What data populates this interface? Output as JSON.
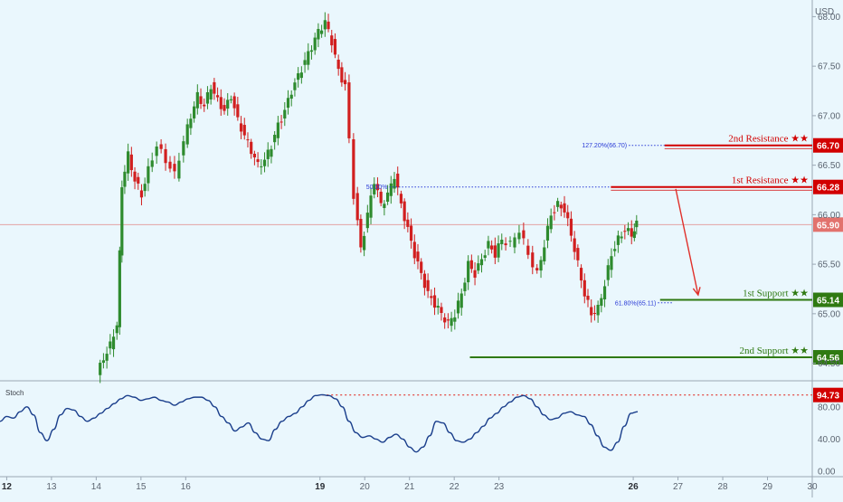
{
  "chart_data": [
    {
      "type": "candlestick",
      "currency": "USD",
      "ylim": [
        64.35,
        68.15
      ],
      "xlim": [
        11.85,
        30.0
      ],
      "price_ticks": [
        "68.00",
        "67.50",
        "67.00",
        "66.50",
        "66.00",
        "65.50",
        "65.00",
        "64.50"
      ],
      "price_tick_values": [
        68.0,
        67.5,
        67.0,
        66.5,
        66.0,
        65.5,
        65.0,
        64.5
      ],
      "date_ticks": [
        "12",
        "13",
        "14",
        "15",
        "16",
        "19",
        "20",
        "21",
        "22",
        "23",
        "26",
        "27",
        "28",
        "29",
        "30"
      ],
      "date_tick_values": [
        12,
        13,
        14,
        15,
        16,
        19,
        20,
        21,
        22,
        23,
        26,
        27,
        28,
        29,
        30
      ],
      "date_tick_bold": [
        "12",
        "19",
        "26"
      ],
      "current_price": {
        "value": 65.9,
        "label": "65.90"
      },
      "levels": [
        {
          "name": "2nd Resistance ★★",
          "value": 66.7,
          "badge": "66.70",
          "kind": "resistance",
          "start_x": 26.7
        },
        {
          "name": "1st Resistance ★★",
          "value": 66.28,
          "badge": "66.28",
          "kind": "resistance",
          "start_x": 25.5
        },
        {
          "name": "1st Support ★★",
          "value": 65.14,
          "badge": "65.14",
          "kind": "support",
          "start_x": 26.6
        },
        {
          "name": "2nd Support ★★",
          "value": 64.56,
          "badge": "64.56",
          "kind": "support",
          "start_x": 22.35
        }
      ],
      "fib_annotations": [
        {
          "label": "127.20%(66.70)",
          "value": 66.7,
          "x_start": 25.9,
          "x_end": 26.7
        },
        {
          "label": "50.00%",
          "value": 66.28,
          "x_start": 20.55,
          "x_end": 25.5
        },
        {
          "label": "61.80%(65.11)",
          "value": 65.11,
          "x_start": 26.55,
          "x_end": 26.9
        }
      ],
      "projection_arrow": {
        "from": [
          26.95,
          66.26
        ],
        "to": [
          27.45,
          65.19
        ]
      },
      "series": [
        {
          "ohlc_points": [
            [
              14.05,
              64.38
            ],
            [
              14.2,
              64.55
            ],
            [
              14.35,
              64.68
            ],
            [
              14.5,
              64.9
            ],
            [
              14.6,
              66.3
            ],
            [
              14.75,
              66.6
            ],
            [
              14.9,
              66.35
            ],
            [
              15.05,
              66.2
            ],
            [
              15.2,
              66.45
            ],
            [
              15.4,
              66.7
            ],
            [
              15.6,
              66.55
            ],
            [
              15.8,
              66.4
            ],
            [
              16.0,
              66.75
            ],
            [
              16.15,
              67.0
            ],
            [
              16.3,
              67.2
            ],
            [
              16.45,
              67.1
            ],
            [
              16.6,
              67.3
            ],
            [
              16.75,
              67.15
            ],
            [
              16.9,
              67.05
            ],
            [
              17.05,
              67.2
            ],
            [
              17.2,
              66.95
            ],
            [
              17.35,
              66.8
            ],
            [
              17.5,
              66.65
            ],
            [
              17.65,
              66.5
            ],
            [
              17.8,
              66.55
            ],
            [
              17.95,
              66.7
            ],
            [
              18.1,
              66.9
            ],
            [
              18.25,
              67.05
            ],
            [
              18.4,
              67.25
            ],
            [
              18.55,
              67.4
            ],
            [
              18.7,
              67.55
            ],
            [
              18.85,
              67.7
            ],
            [
              19.0,
              67.85
            ],
            [
              19.15,
              67.95
            ],
            [
              19.3,
              67.75
            ],
            [
              19.45,
              67.45
            ],
            [
              19.6,
              67.3
            ],
            [
              19.8,
              66.2
            ],
            [
              19.95,
              65.65
            ],
            [
              20.1,
              66.0
            ],
            [
              20.25,
              66.35
            ],
            [
              20.4,
              66.1
            ],
            [
              20.55,
              66.2
            ],
            [
              20.7,
              66.4
            ],
            [
              20.85,
              66.1
            ],
            [
              21.0,
              65.85
            ],
            [
              21.15,
              65.6
            ],
            [
              21.3,
              65.4
            ],
            [
              21.45,
              65.2
            ],
            [
              21.6,
              65.1
            ],
            [
              21.75,
              65.0
            ],
            [
              21.9,
              64.9
            ],
            [
              22.05,
              65.0
            ],
            [
              22.2,
              65.2
            ],
            [
              22.35,
              65.5
            ],
            [
              22.5,
              65.4
            ],
            [
              22.65,
              65.55
            ],
            [
              22.8,
              65.7
            ],
            [
              22.95,
              65.6
            ],
            [
              23.1,
              65.75
            ],
            [
              23.3,
              65.7
            ],
            [
              23.5,
              65.85
            ],
            [
              23.7,
              65.6
            ],
            [
              23.9,
              65.4
            ],
            [
              24.05,
              65.7
            ],
            [
              24.2,
              66.0
            ],
            [
              24.35,
              66.1
            ],
            [
              24.5,
              66.05
            ],
            [
              24.65,
              65.8
            ],
            [
              24.8,
              65.5
            ],
            [
              24.95,
              65.2
            ],
            [
              25.1,
              65.0
            ],
            [
              25.25,
              65.05
            ],
            [
              25.4,
              65.3
            ],
            [
              25.55,
              65.6
            ],
            [
              25.7,
              65.75
            ],
            [
              25.85,
              65.85
            ],
            [
              26.0,
              65.8
            ],
            [
              26.1,
              65.9
            ]
          ]
        }
      ]
    },
    {
      "type": "line",
      "title": "Stoch",
      "ylim": [
        0,
        100
      ],
      "y_ticks": [
        "80.00",
        "40.00",
        "0.00"
      ],
      "y_tick_values": [
        80,
        40,
        0
      ],
      "overbought": {
        "value": 94.73,
        "label": "94.73"
      },
      "series": [
        {
          "x": [
            11.85,
            12.0,
            12.15,
            12.3,
            12.45,
            12.6,
            12.75,
            12.9,
            13.05,
            13.2,
            13.35,
            13.5,
            13.65,
            13.8,
            13.95,
            14.1,
            14.25,
            14.4,
            14.55,
            14.7,
            14.85,
            15.0,
            15.15,
            15.3,
            15.45,
            15.6,
            15.75,
            15.9,
            16.05,
            16.2,
            16.35,
            16.5,
            16.65,
            16.8,
            16.95,
            17.1,
            17.25,
            17.4,
            17.55,
            17.7,
            17.85,
            18.0,
            18.15,
            18.3,
            18.45,
            18.6,
            18.75,
            18.9,
            19.05,
            19.2,
            19.35,
            19.5,
            19.65,
            19.8,
            19.95,
            20.1,
            20.25,
            20.4,
            20.55,
            20.7,
            20.85,
            21.0,
            21.15,
            21.3,
            21.45,
            21.6,
            21.75,
            21.9,
            22.05,
            22.2,
            22.35,
            22.5,
            22.65,
            22.8,
            22.95,
            23.1,
            23.25,
            23.4,
            23.55,
            23.7,
            23.85,
            24.0,
            24.15,
            24.3,
            24.45,
            24.6,
            24.75,
            24.9,
            25.05,
            25.2,
            25.35,
            25.5,
            25.65,
            25.8,
            25.95,
            26.1
          ],
          "values": [
            62,
            68,
            66,
            74,
            80,
            70,
            48,
            38,
            52,
            70,
            78,
            76,
            68,
            62,
            66,
            72,
            78,
            84,
            90,
            94,
            92,
            88,
            90,
            92,
            88,
            86,
            82,
            86,
            90,
            92,
            92,
            88,
            80,
            68,
            60,
            50,
            55,
            60,
            48,
            40,
            38,
            52,
            62,
            68,
            72,
            80,
            88,
            94,
            95,
            94,
            90,
            80,
            62,
            48,
            42,
            44,
            40,
            36,
            42,
            46,
            40,
            30,
            24,
            30,
            44,
            62,
            60,
            48,
            38,
            36,
            40,
            48,
            56,
            66,
            72,
            80,
            86,
            92,
            94,
            90,
            80,
            70,
            64,
            66,
            72,
            74,
            70,
            68,
            58,
            44,
            30,
            26,
            36,
            56,
            72,
            74
          ]
        }
      ]
    }
  ]
}
